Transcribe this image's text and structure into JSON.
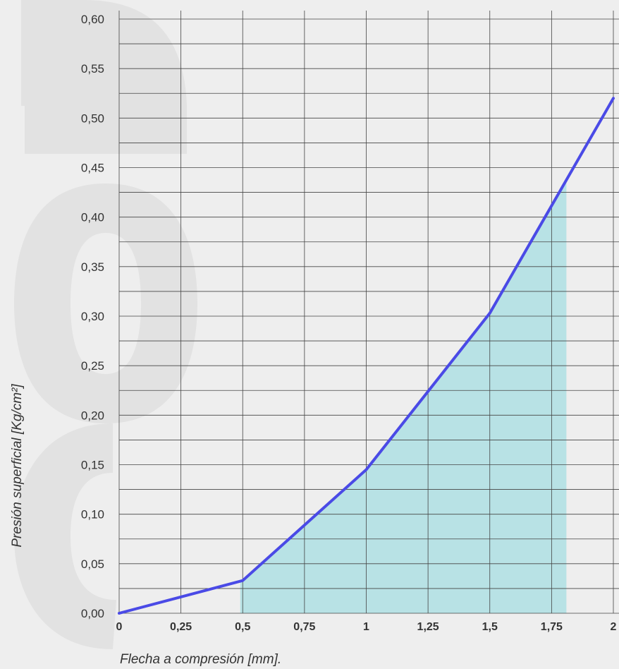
{
  "chart_data": {
    "type": "line",
    "title": "",
    "xlabel": "Flecha a compresión [mm].",
    "ylabel": "Presión superficial [Kg/cm²]",
    "xlim": [
      0,
      2
    ],
    "ylim": [
      0,
      0.6
    ],
    "x_ticks": [
      "0",
      "0,25",
      "0,5",
      "0,75",
      "1",
      "1,25",
      "1,5",
      "1,75",
      "2"
    ],
    "y_ticks": [
      "0,00",
      "0,05",
      "0,10",
      "0,15",
      "0,20",
      "0,25",
      "0,30",
      "0,35",
      "0,40",
      "0,45",
      "0,50",
      "0,55",
      "0,60"
    ],
    "grid": true,
    "series": [
      {
        "x": [
          0,
          0.5,
          1,
          1.5,
          2
        ],
        "y": [
          0,
          0.033,
          0.145,
          0.303,
          0.52
        ]
      }
    ],
    "shaded_region": {
      "x_from": 0.49,
      "x_to": 1.81
    },
    "colors": {
      "line": "#4a4ae6",
      "fill": "#b8e2e5",
      "grid": "#444444",
      "watermark": "#e2e2e2"
    }
  }
}
